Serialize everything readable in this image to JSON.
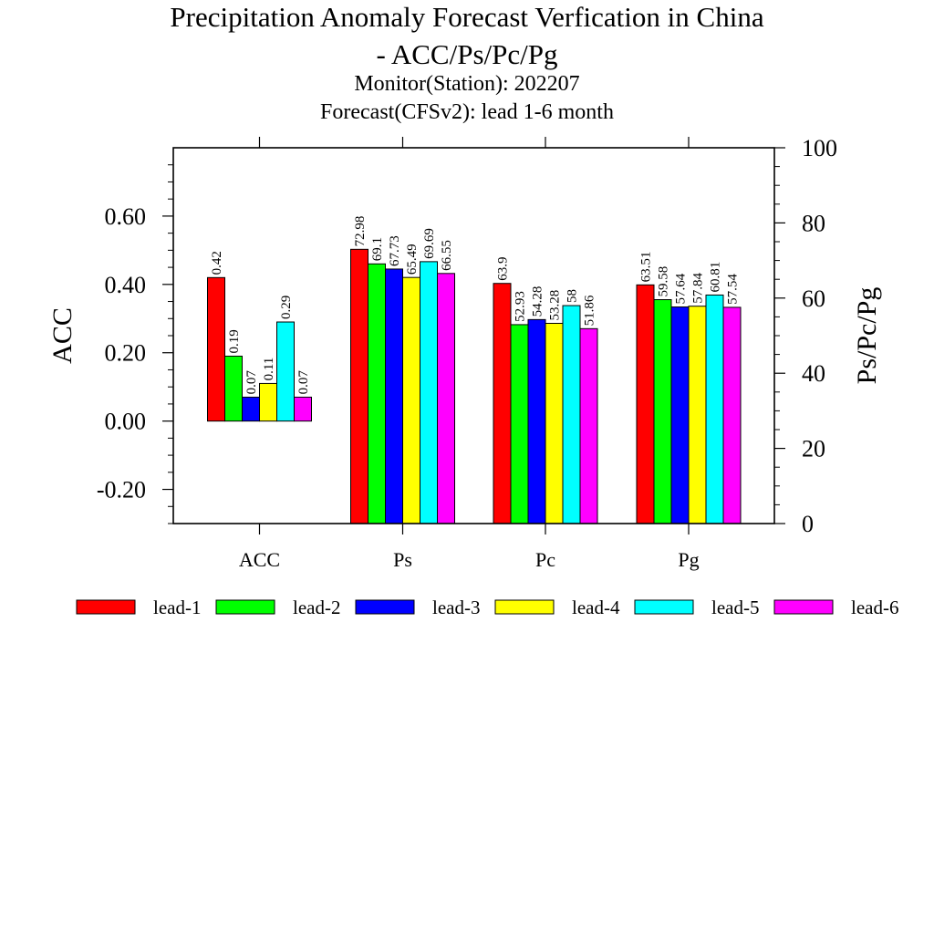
{
  "chart_data": {
    "type": "bar",
    "title_line1": "Precipitation Anomaly Forecast Verfication in China",
    "title_line2": "- ACC/Ps/Pc/Pg",
    "subtitle_line1": "Monitor(Station): 202207",
    "subtitle_line2": "Forecast(CFSv2): lead 1-6 month",
    "ylabel_left": "ACC",
    "ylabel_right": "Ps/Pc/Pg",
    "ylim_left": [
      -0.3,
      0.8
    ],
    "ylim_right": [
      0,
      100
    ],
    "left_ticks": [
      "-0.20",
      "0.00",
      "0.20",
      "0.40",
      "0.60"
    ],
    "left_tick_values": [
      -0.2,
      0.0,
      0.2,
      0.4,
      0.6
    ],
    "right_ticks": [
      "0",
      "20",
      "40",
      "60",
      "80",
      "100"
    ],
    "right_tick_values": [
      0,
      20,
      40,
      60,
      80,
      100
    ],
    "categories": [
      "ACC",
      "Ps",
      "Pc",
      "Pg"
    ],
    "category_axis": [
      "left",
      "right",
      "right",
      "right"
    ],
    "legend_position": "bottom",
    "grid": false,
    "series": [
      {
        "name": "lead-1",
        "color": "#ff0000",
        "values": [
          0.42,
          72.98,
          63.9,
          63.51
        ],
        "labels": [
          "0.42",
          "72.98",
          "63.9",
          "63.51"
        ]
      },
      {
        "name": "lead-2",
        "color": "#00ff00",
        "values": [
          0.19,
          69.1,
          52.93,
          59.58
        ],
        "labels": [
          "0.19",
          "69.1",
          "52.93",
          "59.58"
        ]
      },
      {
        "name": "lead-3",
        "color": "#0000ff",
        "values": [
          0.07,
          67.73,
          54.28,
          57.64
        ],
        "labels": [
          "0.07",
          "67.73",
          "54.28",
          "57.64"
        ]
      },
      {
        "name": "lead-4",
        "color": "#ffff00",
        "values": [
          0.11,
          65.49,
          53.28,
          57.84
        ],
        "labels": [
          "0.11",
          "65.49",
          "53.28",
          "57.84"
        ]
      },
      {
        "name": "lead-5",
        "color": "#00ffff",
        "values": [
          0.29,
          69.69,
          58,
          60.81
        ],
        "labels": [
          "0.29",
          "69.69",
          "58",
          "60.81"
        ]
      },
      {
        "name": "lead-6",
        "color": "#ff00ff",
        "values": [
          0.07,
          66.55,
          51.86,
          57.54
        ],
        "labels": [
          "0.07",
          "66.55",
          "51.86",
          "57.54"
        ]
      }
    ]
  }
}
